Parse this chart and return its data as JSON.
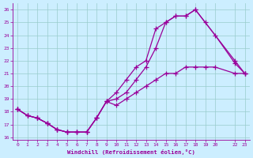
{
  "xlabel": "Windchill (Refroidissement éolien,°C)",
  "bg_color": "#cceeff",
  "line_color": "#990099",
  "grid_color": "#99cccc",
  "xlim": [
    -0.5,
    23.5
  ],
  "ylim": [
    15.8,
    26.5
  ],
  "yticks": [
    16,
    17,
    18,
    19,
    20,
    21,
    22,
    23,
    24,
    25,
    26
  ],
  "xtick_positions": [
    0,
    1,
    2,
    3,
    4,
    5,
    6,
    7,
    8,
    9,
    10,
    11,
    12,
    13,
    14,
    15,
    16,
    17,
    18,
    19,
    20,
    22,
    23
  ],
  "xtick_labels": [
    "0",
    "1",
    "2",
    "3",
    "4",
    "5",
    "6",
    "7",
    "8",
    "9",
    "10",
    "11",
    "12",
    "13",
    "14",
    "15",
    "16",
    "17",
    "18",
    "19",
    "20",
    "22",
    "23"
  ],
  "series1_x": [
    0,
    1,
    2,
    3,
    4,
    5,
    6,
    7,
    8,
    9,
    10,
    11,
    12,
    13,
    14,
    15,
    16,
    17,
    18,
    19,
    20,
    22,
    23
  ],
  "series1_y": [
    18.2,
    17.7,
    17.5,
    17.1,
    16.6,
    16.4,
    16.4,
    16.4,
    17.5,
    18.8,
    18.5,
    19.0,
    19.5,
    20.0,
    20.5,
    21.0,
    21.0,
    21.5,
    21.5,
    21.5,
    21.5,
    21.0,
    21.0
  ],
  "series2_x": [
    0,
    1,
    2,
    3,
    4,
    5,
    6,
    7,
    8,
    9,
    10,
    11,
    12,
    13,
    14,
    15,
    16,
    17,
    18,
    22,
    23
  ],
  "series2_y": [
    18.2,
    17.7,
    17.5,
    17.1,
    16.6,
    16.4,
    16.4,
    16.4,
    17.5,
    18.8,
    19.5,
    20.5,
    21.5,
    22.0,
    24.5,
    25.0,
    25.5,
    25.5,
    26.0,
    22.0,
    21.0
  ],
  "series3_x": [
    0,
    1,
    2,
    3,
    4,
    5,
    6,
    7,
    8,
    9,
    10,
    11,
    12,
    13,
    14,
    15,
    16,
    17,
    18,
    19,
    20,
    22,
    23
  ],
  "series3_y": [
    18.2,
    17.7,
    17.5,
    17.1,
    16.6,
    16.4,
    16.4,
    16.4,
    17.5,
    18.8,
    19.0,
    19.5,
    20.5,
    21.5,
    23.0,
    25.0,
    25.5,
    25.5,
    26.0,
    25.0,
    24.0,
    21.8,
    21.0
  ]
}
